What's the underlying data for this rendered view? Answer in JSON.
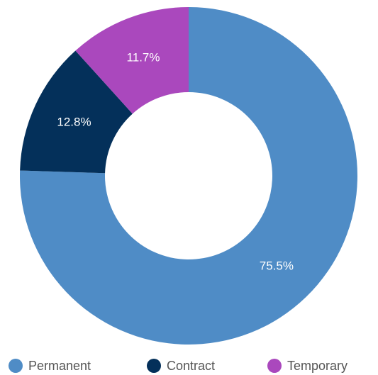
{
  "chart_data": {
    "type": "donut",
    "categories": [
      "Permanent",
      "Contract",
      "Temporary"
    ],
    "values": [
      75.5,
      12.8,
      11.7
    ],
    "value_labels": [
      "75.5%",
      "12.8%",
      "11.7%"
    ],
    "colors": [
      "#4f8cc6",
      "#04305a",
      "#aa48bd"
    ],
    "legend": "bottom"
  }
}
